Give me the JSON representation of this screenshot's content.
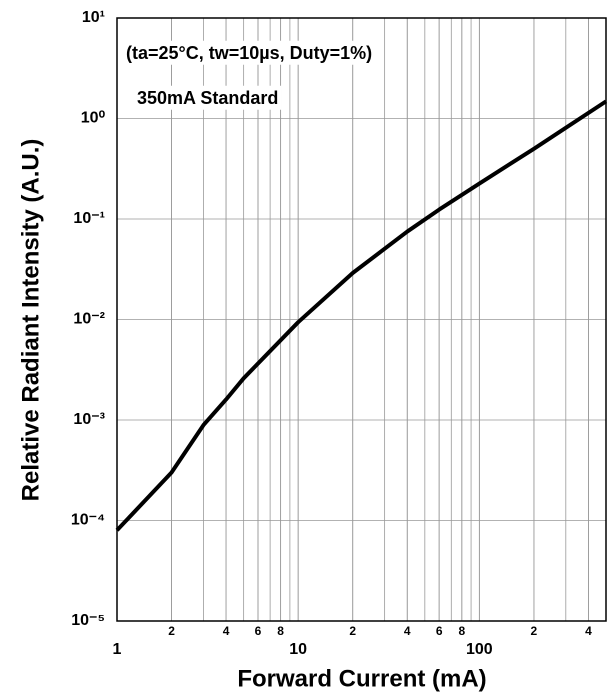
{
  "chart_data": {
    "type": "line",
    "x_label": "Forward Current (mA)",
    "y_label": "Relative Radiant Intensity (A.U.)",
    "annotations": [
      "(ta=25°C, tw=10µs, Duty=1%)",
      "350mA Standard"
    ],
    "x_log": true,
    "y_log": true,
    "grid": true,
    "xlim": [
      1,
      500
    ],
    "ylim": [
      1e-05,
      10
    ],
    "xticks": [
      1,
      2,
      4,
      6,
      8,
      10,
      {
        "value": 20,
        "label": "2"
      },
      {
        "value": 40,
        "label": "4"
      },
      {
        "value": 60,
        "label": "6"
      },
      {
        "value": 80,
        "label": "8"
      },
      100,
      {
        "value": 200,
        "label": "2"
      },
      {
        "value": 400,
        "label": "4"
      }
    ],
    "yticks": [
      {
        "value": 1e-05,
        "label": "10⁻⁵"
      },
      {
        "value": 0.0001,
        "label": "10⁻⁴"
      },
      {
        "value": 0.001,
        "label": "10⁻³"
      },
      {
        "value": 0.01,
        "label": "10⁻²"
      },
      {
        "value": 0.1,
        "label": "10⁻¹"
      },
      {
        "value": 1,
        "label": "10⁰"
      },
      {
        "value": 10,
        "label": "10¹"
      }
    ],
    "x": [
      1,
      2,
      3,
      4,
      5,
      10,
      20,
      40,
      60,
      100,
      200,
      500
    ],
    "series": [
      {
        "color": "#000000",
        "values": [
          8e-05,
          0.0003,
          0.00089,
          0.0016,
          0.0026,
          0.0094,
          0.029,
          0.075,
          0.124,
          0.225,
          0.5,
          1.48
        ]
      }
    ]
  }
}
